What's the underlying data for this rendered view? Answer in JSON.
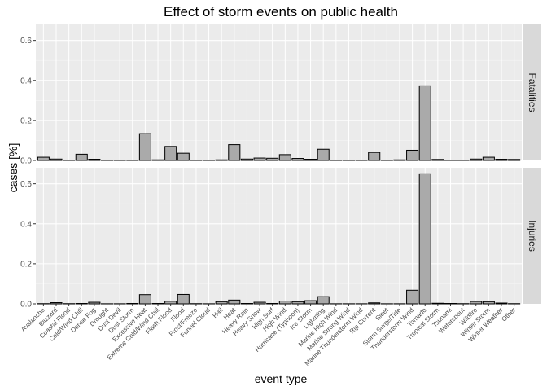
{
  "chart_data": {
    "type": "bar",
    "title": "Effect of storm events on public health",
    "xlabel": "event type",
    "ylabel": "cases [%]",
    "ylim": [
      0,
      0.68
    ],
    "yticks": [
      "0.0",
      "0.2",
      "0.4",
      "0.6"
    ],
    "grid": true,
    "facet_strip_position": "right",
    "bar_fill": "#aaaaaa",
    "bar_outline": "#000000",
    "panel_background": "#ebebeb",
    "strip_background": "#d9d9d9",
    "categories": [
      "Avalanche",
      "Blizzard",
      "Coastal Flood",
      "Cold/Wind Chill",
      "Dense Fog",
      "Drought",
      "Dust Devil",
      "Dust Storm",
      "Excessive Heat",
      "Extreme Cold/Wind Chill",
      "Flash Flood",
      "Flood",
      "Frost/Freeze",
      "Funnel Cloud",
      "Hail",
      "Heat",
      "Heavy Rain",
      "Heavy Snow",
      "High Surf",
      "High Wind",
      "Hurricane (Typhoon)",
      "Ice Storm",
      "Lightning",
      "Marine High Wind",
      "Marine Strong Wind",
      "Marine Thunderstorm Wind",
      "Rip Current",
      "Sleet",
      "Storm Surge/Tide",
      "Thunderstorm Wind",
      "Tornado",
      "Tropical Storm",
      "Tsunami",
      "Waterspout",
      "Wildfire",
      "Winter Storm",
      "Winter Weather",
      "Other"
    ],
    "series": [
      {
        "name": "Fatalities",
        "values": [
          0.016,
          0.007,
          0.001,
          0.031,
          0.006,
          0.0005,
          0.0005,
          0.002,
          0.134,
          0.003,
          0.07,
          0.036,
          0.001,
          0.0005,
          0.003,
          0.079,
          0.007,
          0.012,
          0.011,
          0.029,
          0.01,
          0.006,
          0.056,
          0.0005,
          0.001,
          0.001,
          0.04,
          0.0005,
          0.003,
          0.051,
          0.373,
          0.005,
          0.002,
          0.0005,
          0.007,
          0.016,
          0.006,
          0.005
        ]
      },
      {
        "name": "Injuries",
        "values": [
          0.001,
          0.006,
          0.001,
          0.002,
          0.008,
          0.0005,
          0.0005,
          0.002,
          0.046,
          0.002,
          0.013,
          0.047,
          0.001,
          0.0005,
          0.011,
          0.019,
          0.002,
          0.008,
          0.002,
          0.014,
          0.011,
          0.016,
          0.036,
          0.0005,
          0.0005,
          0.0005,
          0.005,
          0.0005,
          0.0005,
          0.068,
          0.65,
          0.003,
          0.002,
          0.001,
          0.012,
          0.011,
          0.004,
          0.001
        ]
      }
    ]
  }
}
